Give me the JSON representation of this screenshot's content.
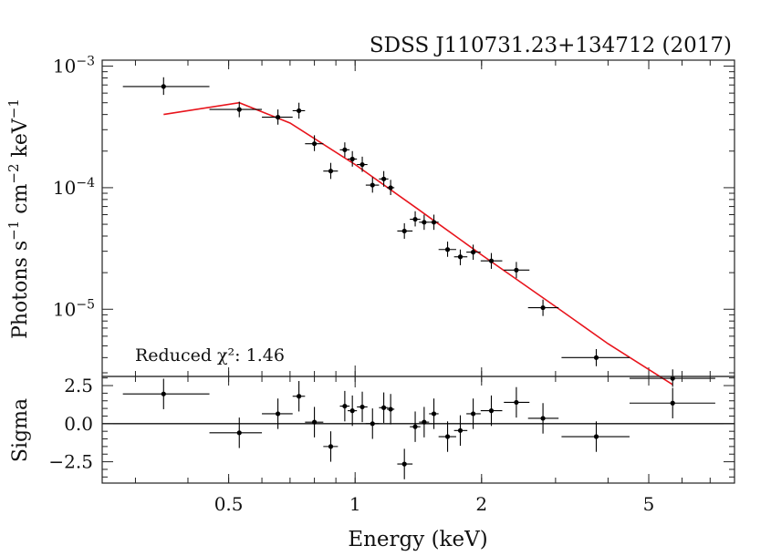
{
  "chart_data": [
    {
      "type": "scatter",
      "panel": "spectrum",
      "title": "SDSS J110731.23+134712 (2017)",
      "ylabel": "Photons s^-1 cm^-2 keV^-1",
      "x_scale": "log",
      "y_scale": "log",
      "xlim": [
        0.25,
        8.0
      ],
      "ylim": [
        2.8e-06,
        0.00112
      ],
      "y_ticks": [
        {
          "value": 0.001,
          "label": "10^-3"
        },
        {
          "value": 0.0001,
          "label": "10^-4"
        },
        {
          "value": 1e-05,
          "label": "10^-5"
        }
      ],
      "annotation": "Reduced χ²: 1.46",
      "data_color": "#000000",
      "model_color": "#e8141c",
      "points": [
        {
          "x": 0.35,
          "xlo": 0.28,
          "xhi": 0.45,
          "y": 0.00068,
          "ylo": 0.00058,
          "yhi": 0.00081
        },
        {
          "x": 0.53,
          "xlo": 0.45,
          "xhi": 0.6,
          "y": 0.00044,
          "ylo": 0.00038,
          "yhi": 0.00051
        },
        {
          "x": 0.655,
          "xlo": 0.6,
          "xhi": 0.71,
          "y": 0.00038,
          "ylo": 0.00033,
          "yhi": 0.00044
        },
        {
          "x": 0.735,
          "xlo": 0.71,
          "xhi": 0.76,
          "y": 0.00043,
          "ylo": 0.00037,
          "yhi": 0.0005
        },
        {
          "x": 0.8,
          "xlo": 0.76,
          "xhi": 0.84,
          "y": 0.00023,
          "ylo": 0.0002,
          "yhi": 0.00027
        },
        {
          "x": 0.875,
          "xlo": 0.84,
          "xhi": 0.91,
          "y": 0.000137,
          "ylo": 0.000118,
          "yhi": 0.00016
        },
        {
          "x": 0.945,
          "xlo": 0.92,
          "xhi": 0.97,
          "y": 0.000205,
          "ylo": 0.000178,
          "yhi": 0.000236
        },
        {
          "x": 0.985,
          "xlo": 0.96,
          "xhi": 1.01,
          "y": 0.000172,
          "ylo": 0.000149,
          "yhi": 0.0002
        },
        {
          "x": 1.04,
          "xlo": 1.01,
          "xhi": 1.07,
          "y": 0.000155,
          "ylo": 0.000135,
          "yhi": 0.00018
        },
        {
          "x": 1.1,
          "xlo": 1.06,
          "xhi": 1.14,
          "y": 0.000105,
          "ylo": 9.1e-05,
          "yhi": 0.000122
        },
        {
          "x": 1.17,
          "xlo": 1.14,
          "xhi": 1.2,
          "y": 0.000118,
          "ylo": 0.000102,
          "yhi": 0.000137
        },
        {
          "x": 1.215,
          "xlo": 1.19,
          "xhi": 1.24,
          "y": 0.0001,
          "ylo": 8.7e-05,
          "yhi": 0.000116
        },
        {
          "x": 1.31,
          "xlo": 1.26,
          "xhi": 1.37,
          "y": 4.4e-05,
          "ylo": 3.8e-05,
          "yhi": 5.1e-05
        },
        {
          "x": 1.39,
          "xlo": 1.35,
          "xhi": 1.43,
          "y": 5.5e-05,
          "ylo": 4.8e-05,
          "yhi": 6.4e-05
        },
        {
          "x": 1.46,
          "xlo": 1.42,
          "xhi": 1.5,
          "y": 5.2e-05,
          "ylo": 4.5e-05,
          "yhi": 6e-05
        },
        {
          "x": 1.54,
          "xlo": 1.5,
          "xhi": 1.58,
          "y": 5.2e-05,
          "ylo": 4.5e-05,
          "yhi": 6e-05
        },
        {
          "x": 1.66,
          "xlo": 1.58,
          "xhi": 1.74,
          "y": 3.1e-05,
          "ylo": 2.7e-05,
          "yhi": 3.6e-05
        },
        {
          "x": 1.78,
          "xlo": 1.72,
          "xhi": 1.85,
          "y": 2.7e-05,
          "ylo": 2.3e-05,
          "yhi": 3.1e-05
        },
        {
          "x": 1.91,
          "xlo": 1.84,
          "xhi": 1.99,
          "y": 2.95e-05,
          "ylo": 2.55e-05,
          "yhi": 3.4e-05
        },
        {
          "x": 2.11,
          "xlo": 1.99,
          "xhi": 2.24,
          "y": 2.5e-05,
          "ylo": 2.15e-05,
          "yhi": 2.9e-05
        },
        {
          "x": 2.42,
          "xlo": 2.26,
          "xhi": 2.6,
          "y": 2.1e-05,
          "ylo": 1.8e-05,
          "yhi": 2.45e-05
        },
        {
          "x": 2.8,
          "xlo": 2.58,
          "xhi": 3.05,
          "y": 1.03e-05,
          "ylo": 8.8e-06,
          "yhi": 1.2e-05
        },
        {
          "x": 3.75,
          "xlo": 3.1,
          "xhi": 4.5,
          "y": 4e-06,
          "ylo": 3.4e-06,
          "yhi": 4.7e-06
        },
        {
          "x": 5.7,
          "xlo": 4.5,
          "xhi": 7.2,
          "y": 2.7e-06,
          "ylo": 2.3e-06,
          "yhi": 3.2e-06
        }
      ],
      "model": [
        {
          "x": 0.35,
          "y": 0.0004
        },
        {
          "x": 0.53,
          "y": 0.0005
        },
        {
          "x": 0.7,
          "y": 0.00034
        },
        {
          "x": 1.0,
          "y": 0.000155
        },
        {
          "x": 1.4,
          "y": 6.8e-05
        },
        {
          "x": 2.0,
          "y": 2.8e-05
        },
        {
          "x": 3.0,
          "y": 1.05e-05
        },
        {
          "x": 4.0,
          "y": 5.2e-06
        },
        {
          "x": 5.7,
          "y": 2.4e-06
        }
      ]
    },
    {
      "type": "scatter",
      "panel": "residuals",
      "xlabel": "Energy (keV)",
      "ylabel": "Sigma",
      "x_scale": "log",
      "xlim": [
        0.25,
        8.0
      ],
      "ylim": [
        -3.9,
        3.1
      ],
      "x_ticks": [
        {
          "value": 0.5,
          "label": "0.5"
        },
        {
          "value": 1,
          "label": "1"
        },
        {
          "value": 2,
          "label": "2"
        },
        {
          "value": 5,
          "label": "5"
        }
      ],
      "y_ticks": [
        {
          "value": 2.5,
          "label": "2.5"
        },
        {
          "value": 0,
          "label": "0.0"
        },
        {
          "value": -2.5,
          "label": "−2.5"
        }
      ],
      "reference_line": 0,
      "points": [
        {
          "x": 0.35,
          "xlo": 0.28,
          "xhi": 0.45,
          "y": 1.95,
          "ylo": 0.95,
          "yhi": 2.95
        },
        {
          "x": 0.53,
          "xlo": 0.45,
          "xhi": 0.6,
          "y": -0.6,
          "ylo": -1.6,
          "yhi": 0.4
        },
        {
          "x": 0.655,
          "xlo": 0.6,
          "xhi": 0.71,
          "y": 0.65,
          "ylo": -0.35,
          "yhi": 1.65
        },
        {
          "x": 0.735,
          "xlo": 0.71,
          "xhi": 0.76,
          "y": 1.8,
          "ylo": 0.8,
          "yhi": 2.8
        },
        {
          "x": 0.8,
          "xlo": 0.76,
          "xhi": 0.84,
          "y": 0.1,
          "ylo": -0.9,
          "yhi": 1.1
        },
        {
          "x": 0.875,
          "xlo": 0.84,
          "xhi": 0.91,
          "y": -1.5,
          "ylo": -2.5,
          "yhi": -0.5
        },
        {
          "x": 0.945,
          "xlo": 0.92,
          "xhi": 0.97,
          "y": 1.15,
          "ylo": 0.15,
          "yhi": 2.15
        },
        {
          "x": 0.985,
          "xlo": 0.96,
          "xhi": 1.01,
          "y": 0.85,
          "ylo": -0.15,
          "yhi": 1.85
        },
        {
          "x": 1.04,
          "xlo": 1.01,
          "xhi": 1.07,
          "y": 1.1,
          "ylo": 0.1,
          "yhi": 2.1
        },
        {
          "x": 1.1,
          "xlo": 1.06,
          "xhi": 1.14,
          "y": 0.0,
          "ylo": -1.0,
          "yhi": 1.0
        },
        {
          "x": 1.17,
          "xlo": 1.14,
          "xhi": 1.2,
          "y": 1.05,
          "ylo": 0.05,
          "yhi": 2.05
        },
        {
          "x": 1.215,
          "xlo": 1.19,
          "xhi": 1.24,
          "y": 0.95,
          "ylo": -0.05,
          "yhi": 1.95
        },
        {
          "x": 1.31,
          "xlo": 1.26,
          "xhi": 1.37,
          "y": -2.65,
          "ylo": -3.65,
          "yhi": -1.65
        },
        {
          "x": 1.39,
          "xlo": 1.35,
          "xhi": 1.43,
          "y": -0.2,
          "ylo": -1.2,
          "yhi": 0.8
        },
        {
          "x": 1.46,
          "xlo": 1.42,
          "xhi": 1.5,
          "y": 0.1,
          "ylo": -0.9,
          "yhi": 1.1
        },
        {
          "x": 1.54,
          "xlo": 1.5,
          "xhi": 1.58,
          "y": 0.65,
          "ylo": -0.35,
          "yhi": 1.65
        },
        {
          "x": 1.66,
          "xlo": 1.58,
          "xhi": 1.74,
          "y": -0.85,
          "ylo": -1.85,
          "yhi": 0.15
        },
        {
          "x": 1.78,
          "xlo": 1.72,
          "xhi": 1.85,
          "y": -0.45,
          "ylo": -1.45,
          "yhi": 0.55
        },
        {
          "x": 1.91,
          "xlo": 1.84,
          "xhi": 1.99,
          "y": 0.65,
          "ylo": -0.35,
          "yhi": 1.65
        },
        {
          "x": 2.11,
          "xlo": 1.99,
          "xhi": 2.24,
          "y": 0.85,
          "ylo": -0.15,
          "yhi": 1.85
        },
        {
          "x": 2.42,
          "xlo": 2.26,
          "xhi": 2.6,
          "y": 1.4,
          "ylo": 0.4,
          "yhi": 2.4
        },
        {
          "x": 2.8,
          "xlo": 2.58,
          "xhi": 3.05,
          "y": 0.35,
          "ylo": -0.65,
          "yhi": 1.35
        },
        {
          "x": 3.75,
          "xlo": 3.1,
          "xhi": 4.5,
          "y": -0.85,
          "ylo": -1.85,
          "yhi": 0.15
        },
        {
          "x": 5.7,
          "xlo": 4.5,
          "xhi": 7.2,
          "y": 1.35,
          "ylo": 0.35,
          "yhi": 2.35
        }
      ]
    }
  ]
}
